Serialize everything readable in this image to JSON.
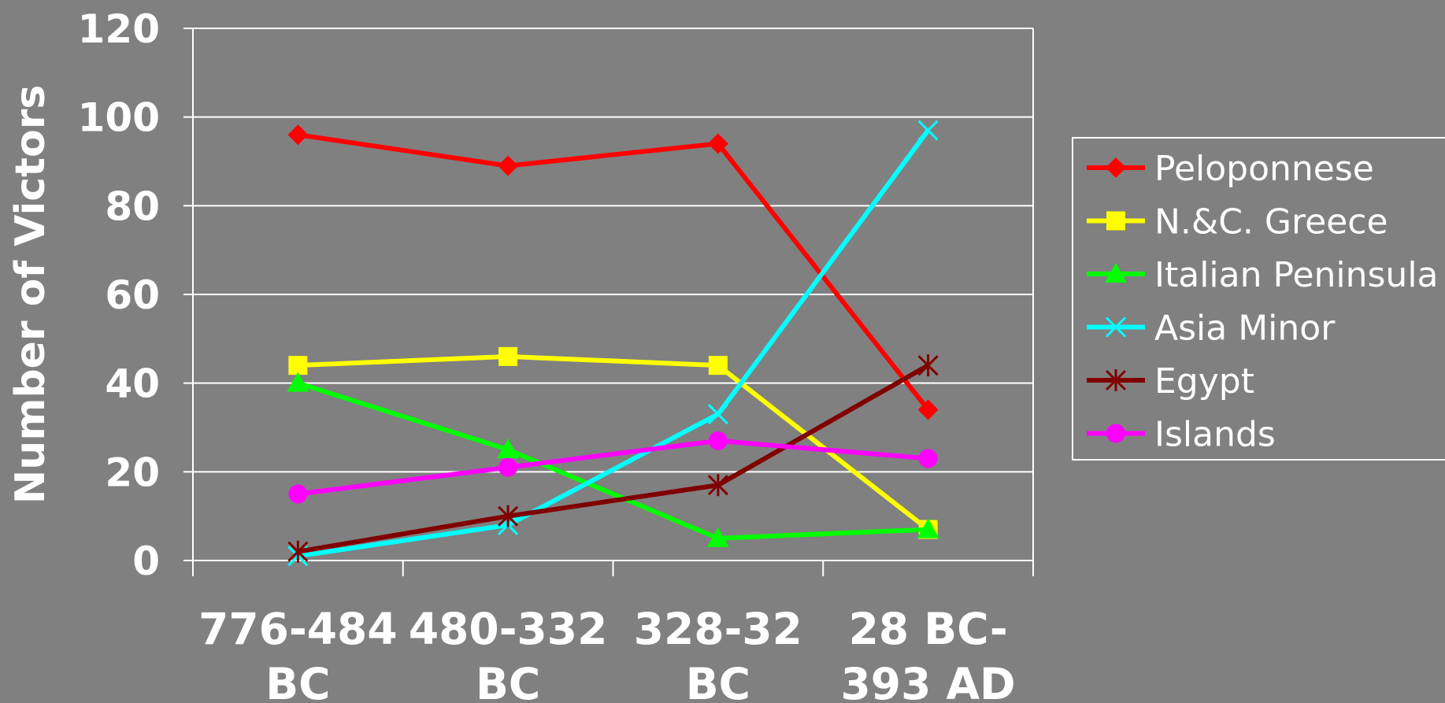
{
  "chart_data": {
    "type": "line",
    "ylabel": "Number of Victors",
    "ylim": [
      0,
      120
    ],
    "yticks": [
      0,
      20,
      40,
      60,
      80,
      100,
      120
    ],
    "grid": "horizontal",
    "legend_position": "right",
    "categories": [
      [
        "776-484",
        "BC"
      ],
      [
        "480-332",
        "BC"
      ],
      [
        "328-32",
        "BC"
      ],
      [
        "28 BC-",
        "393 AD"
      ]
    ],
    "series": [
      {
        "name": "Peloponnese",
        "color": "#ff0000",
        "marker": "diamond",
        "values": [
          96,
          89,
          94,
          34
        ]
      },
      {
        "name": "N.&C. Greece",
        "color": "#ffff00",
        "marker": "square",
        "values": [
          44,
          46,
          44,
          7
        ]
      },
      {
        "name": "Italian Peninsula",
        "color": "#00ff00",
        "marker": "triangle",
        "values": [
          40,
          25,
          5,
          7
        ]
      },
      {
        "name": "Asia Minor",
        "color": "#00ffff",
        "marker": "x",
        "values": [
          1,
          8,
          33,
          97
        ]
      },
      {
        "name": "Egypt",
        "color": "#800000",
        "marker": "asterisk",
        "values": [
          2,
          10,
          17,
          44
        ]
      },
      {
        "name": "Islands",
        "color": "#ff00ff",
        "marker": "circle",
        "values": [
          15,
          21,
          27,
          23
        ]
      }
    ]
  }
}
